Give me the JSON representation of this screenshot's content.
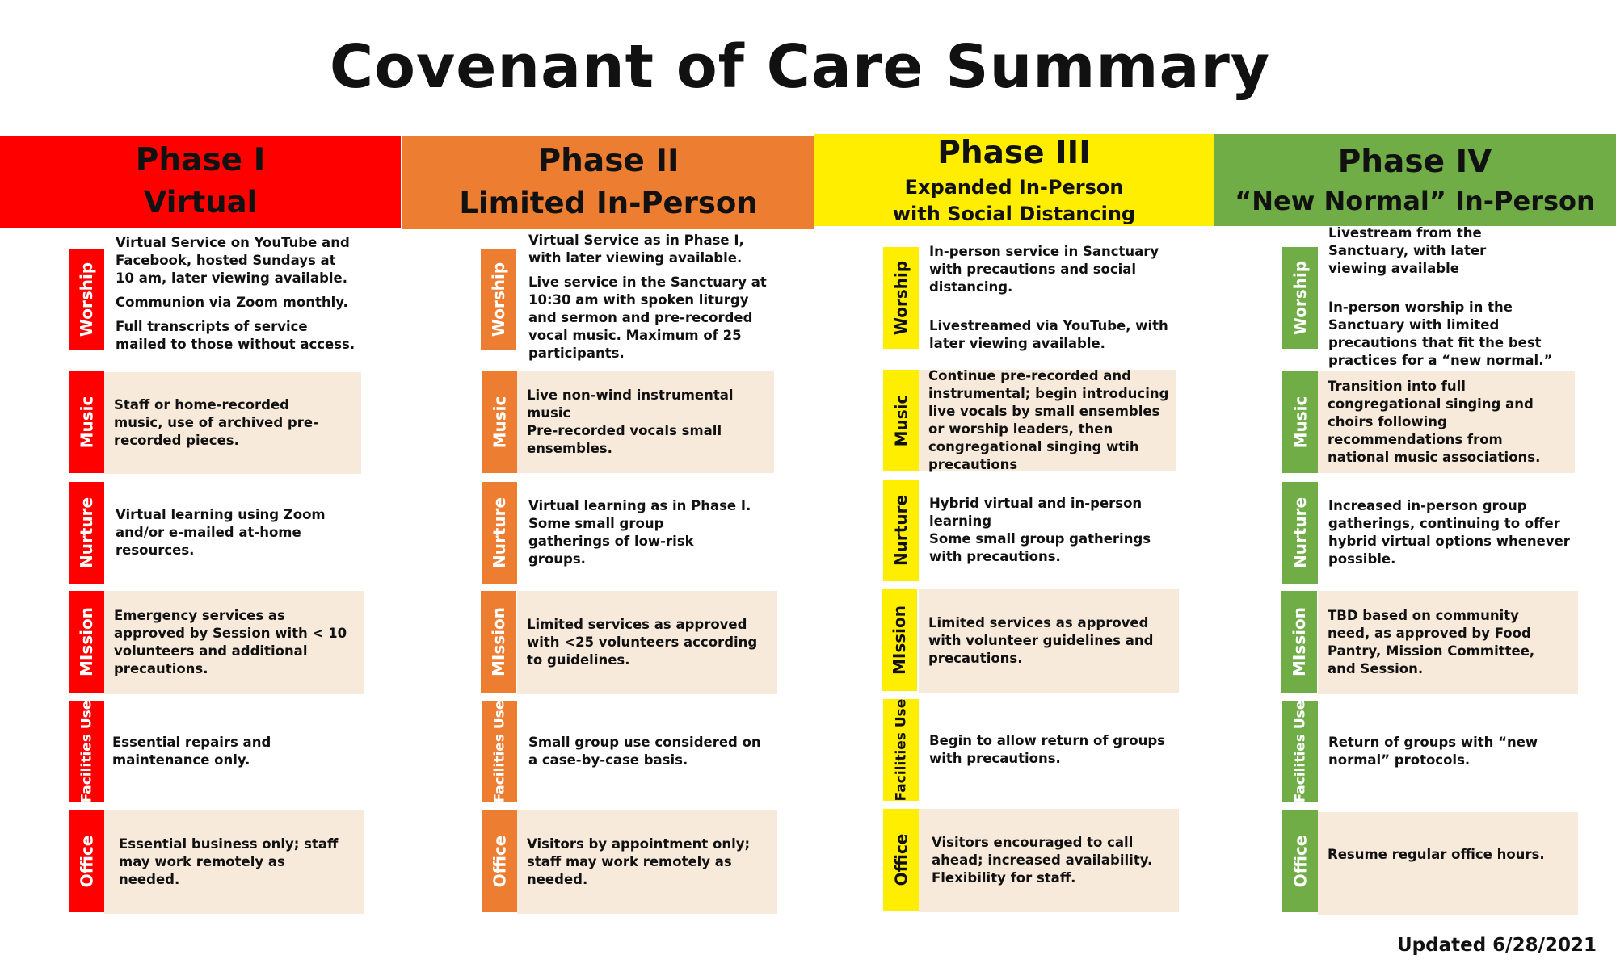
{
  "title": "Covenant of Care Summary",
  "updated": "Updated 6/28/2021",
  "colors": {
    "phase1": "#ff0000",
    "phase2": "#ed7d31",
    "phase3": "#ffee00",
    "phase4": "#70ad47",
    "panel_bg": "#f7eadb"
  },
  "phases": [
    {
      "name": "Phase I",
      "subtitle": "Virtual",
      "rows": [
        {
          "label": "Worship",
          "lines": [
            "Virtual Service on YouTube and Facebook, hosted Sundays at 10 am, later viewing available.",
            "Communion via Zoom monthly.",
            "Full transcripts of service mailed to those without access."
          ]
        },
        {
          "label": "Music",
          "lines": [
            "Staff or home-recorded music, use of archived pre-recorded pieces."
          ]
        },
        {
          "label": "Nurture",
          "lines": [
            "Virtual learning using Zoom and/or e-mailed at-home resources."
          ]
        },
        {
          "label": "MIssion",
          "lines": [
            "Emergency services as approved by Session with < 10 volunteers and additional precautions."
          ]
        },
        {
          "label": "Facilities Use",
          "lines": [
            "Essential repairs and maintenance only."
          ]
        },
        {
          "label": "Office",
          "lines": [
            "Essential business only; staff may work remotely as needed."
          ]
        }
      ]
    },
    {
      "name": "Phase II",
      "subtitle": "Limited In-Person",
      "rows": [
        {
          "label": "Worship",
          "lines": [
            "Virtual Service as in Phase I, with later viewing available.",
            "Live service in the Sanctuary at 10:30 am with spoken liturgy and sermon and pre-recorded vocal music. Maximum of 25 participants."
          ]
        },
        {
          "label": "Music",
          "lines": [
            "Live non-wind instrumental music",
            "Pre-recorded vocals small ensembles."
          ]
        },
        {
          "label": "Nurture",
          "lines": [
            "Virtual learning as in Phase I.",
            "Some small group gatherings of low-risk groups."
          ]
        },
        {
          "label": "MIssion",
          "lines": [
            "Limited services as approved with <25 volunteers according to guidelines."
          ]
        },
        {
          "label": "Facilities Use",
          "lines": [
            "Small group use considered on a case-by-case basis."
          ]
        },
        {
          "label": "Office",
          "lines": [
            "Visitors by appointment only; staff may work remotely as needed."
          ]
        }
      ]
    },
    {
      "name": "Phase III",
      "subtitle": "Expanded In-Person with Social Distancing",
      "rows": [
        {
          "label": "Worship",
          "lines": [
            "In-person service in Sanctuary with precautions and social distancing.",
            "Livestreamed via YouTube, with later viewing available."
          ]
        },
        {
          "label": "Music",
          "lines": [
            "Continue pre-recorded and instrumental; begin introducing live vocals by small ensembles or worship leaders, then congregational singing wtih precautions"
          ]
        },
        {
          "label": "Nurture",
          "lines": [
            "Hybrid virtual and in-person learning",
            "Some small group gatherings with precautions."
          ]
        },
        {
          "label": "MIssion",
          "lines": [
            "Limited services as approved with volunteer guidelines and precautions."
          ]
        },
        {
          "label": "Facilities Use",
          "lines": [
            "Begin to allow return of groups with precautions."
          ]
        },
        {
          "label": "Office",
          "lines": [
            "Visitors encouraged to call ahead; increased availability. Flexibility for staff."
          ]
        }
      ]
    },
    {
      "name": "Phase IV",
      "subtitle": "“New Normal” In-Person",
      "rows": [
        {
          "label": "Worship",
          "lines": [
            "Livestream from the Sanctuary, with later viewing available",
            "In-person worship in the Sanctuary with limited precautions that fit the best practices for a “new normal.”"
          ]
        },
        {
          "label": "Music",
          "lines": [
            "Transition into full congregational singing and choirs following recommendations from national music associations."
          ]
        },
        {
          "label": "Nurture",
          "lines": [
            "Increased in-person group gatherings, continuing to offer hybrid virtual options whenever possible."
          ]
        },
        {
          "label": "MIssion",
          "lines": [
            "TBD based on community need, as approved by Food Pantry, Mission Committee, and Session."
          ]
        },
        {
          "label": "Facilities Use",
          "lines": [
            "Return of groups with “new normal” protocols."
          ]
        },
        {
          "label": "Office",
          "lines": [
            "Resume regular office hours."
          ]
        }
      ]
    }
  ]
}
